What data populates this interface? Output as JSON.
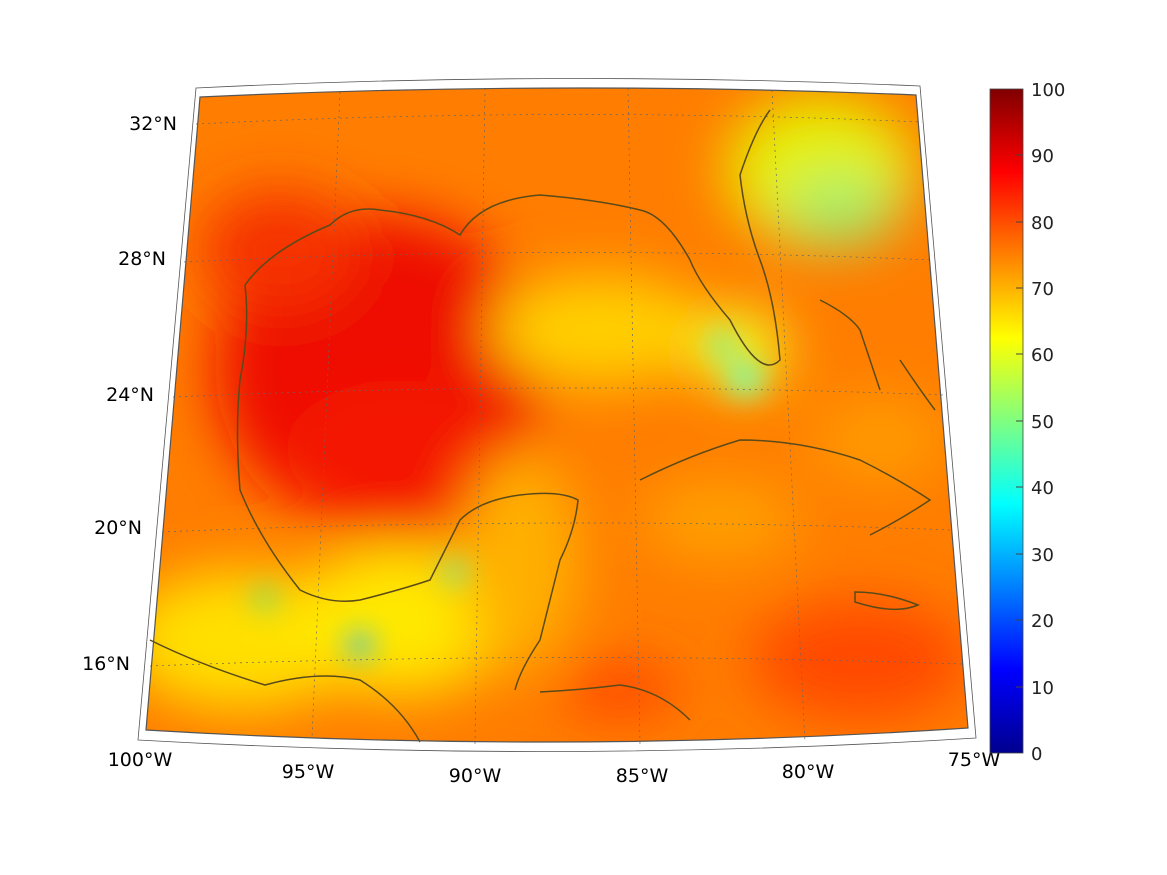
{
  "map": {
    "region": "Gulf of Mexico and Caribbean",
    "lat_labels": [
      "32°N",
      "28°N",
      "24°N",
      "20°N",
      "16°N"
    ],
    "lon_labels": [
      "100°W",
      "95°W",
      "90°W",
      "85°W",
      "80°W",
      "75°W"
    ],
    "coastline_color": "#5a4a1a",
    "graticule_color": "#666666"
  },
  "colorbar": {
    "ticks": [
      "100",
      "90",
      "80",
      "70",
      "60",
      "50",
      "40",
      "30",
      "20",
      "10",
      "0"
    ],
    "min": 0,
    "max": 100,
    "colormap": "jet"
  }
}
